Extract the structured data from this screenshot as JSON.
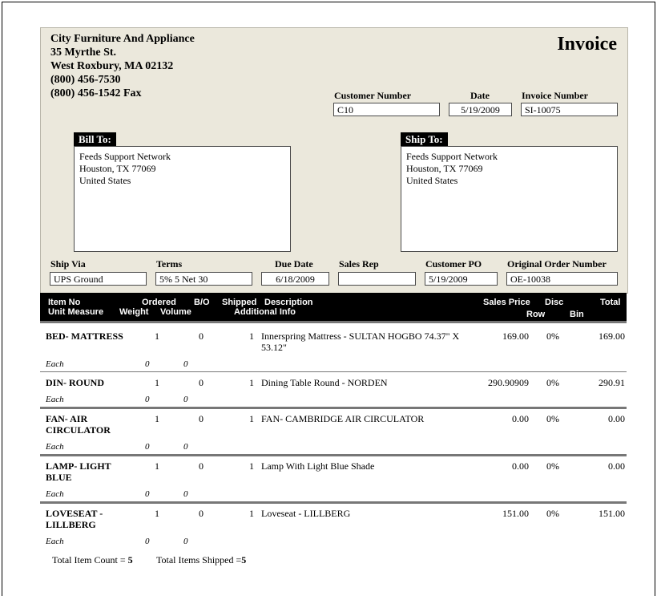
{
  "company": {
    "name": "City Furniture And Appliance",
    "street": "35 Myrthe St.",
    "city_line": "West Roxbury,  MA 02132",
    "phone": "(800) 456-7530",
    "fax": "(800) 456-1542 Fax"
  },
  "title": "Invoice",
  "fields": {
    "customer_number": {
      "label": "Customer Number",
      "value": "C10"
    },
    "date": {
      "label": "Date",
      "value": "5/19/2009"
    },
    "invoice_number": {
      "label": "Invoice Number",
      "value": "SI-10075"
    },
    "ship_via": {
      "label": "Ship Via",
      "value": "UPS Ground"
    },
    "terms": {
      "label": "Terms",
      "value": "5% 5 Net 30"
    },
    "due_date": {
      "label": "Due Date",
      "value": "6/18/2009"
    },
    "sales_rep": {
      "label": "Sales Rep",
      "value": ""
    },
    "customer_po": {
      "label": "Customer PO",
      "value": "5/19/2009"
    },
    "original_order": {
      "label": "Original Order Number",
      "value": "OE-10038"
    }
  },
  "bill_to": {
    "label": "Bill To:",
    "lines": [
      "Feeds Support Network",
      "Houston, TX 77069",
      "United States"
    ]
  },
  "ship_to": {
    "label": "Ship To:",
    "lines": [
      "Feeds Support Network",
      "Houston, TX 77069",
      "United States"
    ]
  },
  "columns": {
    "item_no": "Item No",
    "unit_measure": "Unit Measure",
    "ordered": "Ordered",
    "weight": "Weight",
    "bo": "B/O",
    "volume": "Volume",
    "shipped": "Shipped",
    "description": "Description",
    "additional_info": "Additional Info",
    "sales_price": "Sales Price",
    "disc": "Disc",
    "row": "Row",
    "bin": "Bin",
    "total": "Total"
  },
  "items": [
    {
      "item": [
        "BED- MATTRESS"
      ],
      "ordered": "1",
      "bo": "0",
      "shipped": "1",
      "description": [
        "Innerspring Mattress - SULTAN HOGBO 74.37\" X",
        "53.12\""
      ],
      "price": "169.00",
      "disc": "0%",
      "total": "169.00",
      "unit": "Each",
      "weight": "0",
      "volume": "0"
    },
    {
      "item": [
        "DIN- ROUND"
      ],
      "ordered": "1",
      "bo": "0",
      "shipped": "1",
      "description": [
        "Dining Table Round - NORDEN"
      ],
      "price": "290.90909",
      "disc": "0%",
      "total": "290.91",
      "unit": "Each",
      "weight": "0",
      "volume": "0"
    },
    {
      "item": [
        "FAN- AIR",
        "CIRCULATOR"
      ],
      "ordered": "1",
      "bo": "0",
      "shipped": "1",
      "description": [
        "FAN- CAMBRIDGE AIR CIRCULATOR"
      ],
      "price": "0.00",
      "disc": "0%",
      "total": "0.00",
      "unit": "Each",
      "weight": "0",
      "volume": "0"
    },
    {
      "item": [
        "LAMP- LIGHT",
        "BLUE"
      ],
      "ordered": "1",
      "bo": "0",
      "shipped": "1",
      "description": [
        "Lamp With Light Blue Shade"
      ],
      "price": "0.00",
      "disc": "0%",
      "total": "0.00",
      "unit": "Each",
      "weight": "0",
      "volume": "0"
    },
    {
      "item": [
        "LOVESEAT -",
        "LILLBERG"
      ],
      "ordered": "1",
      "bo": "0",
      "shipped": "1",
      "description": [
        "Loveseat - LILLBERG"
      ],
      "price": "151.00",
      "disc": "0%",
      "total": "151.00",
      "unit": "Each",
      "weight": "0",
      "volume": "0"
    }
  ],
  "totals": {
    "item_count_label": "Total Item Count = ",
    "item_count": "5",
    "items_shipped_label": "Total Items Shipped =",
    "items_shipped": "5"
  },
  "colors": {
    "panel": "#ebe8dc",
    "header_bar": "#000000"
  }
}
